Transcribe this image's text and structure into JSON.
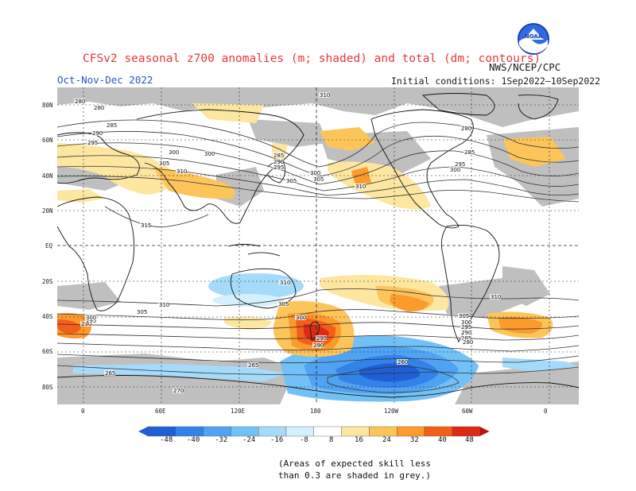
{
  "header": {
    "title": "CFSv2 seasonal z700 anomalies (m; shaded) and total (dm; contours)",
    "season": "Oct-Nov-Dec 2022",
    "agency": "NWS/NCEP/CPC",
    "initial_conditions": "Initial conditions: 1Sep2022–10Sep2022"
  },
  "logo": {
    "text": "NOAA"
  },
  "axes": {
    "lat_labels": [
      "80N",
      "60N",
      "40N",
      "20N",
      "EQ",
      "20S",
      "40S",
      "60S",
      "80S"
    ],
    "lon_labels": [
      "0",
      "60E",
      "120E",
      "180",
      "120W",
      "60W",
      "0"
    ]
  },
  "colorbar": {
    "ticks": [
      "-48",
      "-40",
      "-32",
      "-24",
      "-16",
      "-8",
      "8",
      "16",
      "24",
      "32",
      "40",
      "48"
    ],
    "colors": [
      "#1f5fd6",
      "#3282e8",
      "#4fa3f2",
      "#72c1f6",
      "#a4dbfb",
      "#d4effd",
      "#ffffff",
      "#fde6a0",
      "#fdc45a",
      "#fd9a2c",
      "#f35f1a",
      "#de2a14",
      "#b8140c"
    ]
  },
  "contour_labels": [
    {
      "text": "280"
    },
    {
      "text": "285"
    },
    {
      "text": "290"
    },
    {
      "text": "295"
    },
    {
      "text": "300"
    },
    {
      "text": "305"
    },
    {
      "text": "310"
    },
    {
      "text": "315"
    },
    {
      "text": "310"
    },
    {
      "text": "305"
    },
    {
      "text": "300"
    },
    {
      "text": "295"
    },
    {
      "text": "290"
    },
    {
      "text": "285"
    },
    {
      "text": "280"
    },
    {
      "text": "270"
    },
    {
      "text": "265"
    },
    {
      "text": "260"
    },
    {
      "text": "265"
    },
    {
      "text": "290"
    },
    {
      "text": "295"
    },
    {
      "text": "300"
    },
    {
      "text": "305"
    },
    {
      "text": "310"
    },
    {
      "text": "310"
    },
    {
      "text": "305"
    },
    {
      "text": "300"
    },
    {
      "text": "295"
    },
    {
      "text": "290"
    },
    {
      "text": "285"
    },
    {
      "text": "280"
    },
    {
      "text": "290"
    },
    {
      "text": "295"
    },
    {
      "text": "300"
    },
    {
      "text": "305"
    },
    {
      "text": "310"
    },
    {
      "text": "305"
    },
    {
      "text": "300"
    },
    {
      "text": "295"
    },
    {
      "text": "285"
    },
    {
      "text": "300"
    },
    {
      "text": "310"
    },
    {
      "text": "280"
    }
  ],
  "footnote": {
    "line1": "(Areas of expected skill less",
    "line2": "than 0.3 are shaded in grey.)"
  }
}
